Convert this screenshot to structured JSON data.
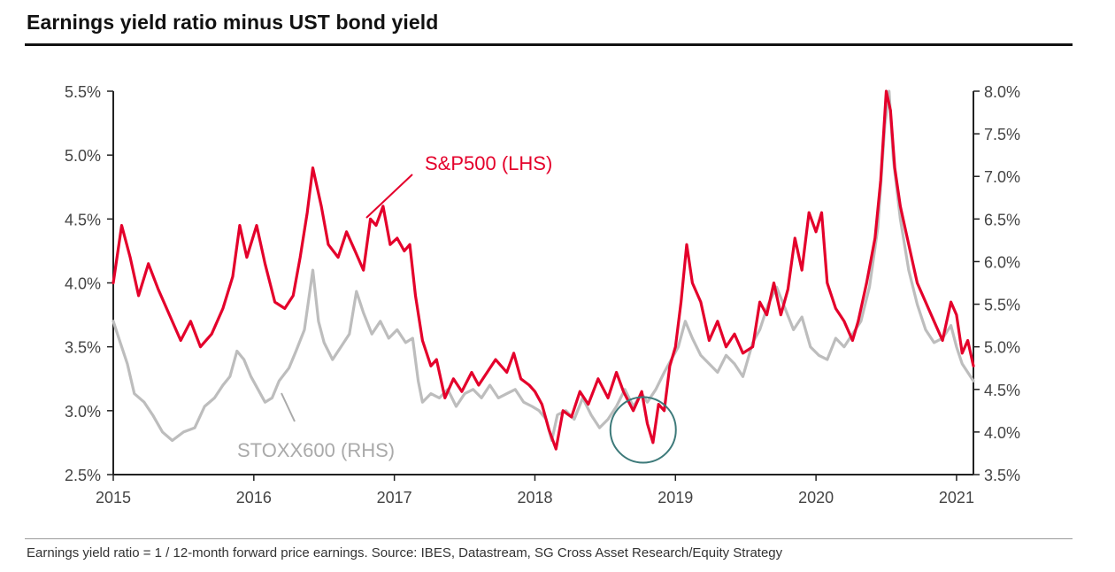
{
  "title": "Earnings yield ratio minus UST bond yield",
  "footnote": "Earnings yield ratio = 1 / 12-month forward price earnings. Source: IBES, Datastream, SG Cross Asset Research/Equity Strategy",
  "colors": {
    "sp500": "#e4002b",
    "stoxx": "#bdbdbd",
    "axis": "#222222",
    "circle": "#3d7a7a"
  },
  "chart_data": {
    "type": "line",
    "title": "Earnings yield ratio minus UST bond yield",
    "x_range": [
      2015.0,
      2021.12
    ],
    "x_ticks": [
      2015,
      2016,
      2017,
      2018,
      2019,
      2020,
      2021
    ],
    "x_tick_labels": [
      "2015",
      "2016",
      "2017",
      "2018",
      "2019",
      "2020",
      "2021"
    ],
    "y_left": {
      "range": [
        2.5,
        5.5
      ],
      "ticks": [
        2.5,
        3.0,
        3.5,
        4.0,
        4.5,
        5.0,
        5.5
      ],
      "tick_labels": [
        "2.5%",
        "3.0%",
        "3.5%",
        "4.0%",
        "4.5%",
        "5.0%",
        "5.5%"
      ]
    },
    "y_right": {
      "range": [
        3.5,
        8.0
      ],
      "ticks": [
        3.5,
        4.0,
        4.5,
        5.0,
        5.5,
        6.0,
        6.5,
        7.0,
        7.5,
        8.0
      ],
      "tick_labels": [
        "3.5%",
        "4.0%",
        "4.5%",
        "5.0%",
        "5.5%",
        "6.0%",
        "6.5%",
        "7.0%",
        "7.5%",
        "8.0%"
      ]
    },
    "series": [
      {
        "name": "S&P500 (LHS)",
        "axis": "left",
        "color": "#e4002b",
        "points": [
          [
            2015.0,
            4.0
          ],
          [
            2015.06,
            4.45
          ],
          [
            2015.12,
            4.2
          ],
          [
            2015.18,
            3.9
          ],
          [
            2015.25,
            4.15
          ],
          [
            2015.32,
            3.95
          ],
          [
            2015.4,
            3.75
          ],
          [
            2015.48,
            3.55
          ],
          [
            2015.55,
            3.7
          ],
          [
            2015.62,
            3.5
          ],
          [
            2015.7,
            3.6
          ],
          [
            2015.78,
            3.8
          ],
          [
            2015.85,
            4.05
          ],
          [
            2015.9,
            4.45
          ],
          [
            2015.95,
            4.2
          ],
          [
            2016.02,
            4.45
          ],
          [
            2016.08,
            4.15
          ],
          [
            2016.15,
            3.85
          ],
          [
            2016.22,
            3.8
          ],
          [
            2016.28,
            3.9
          ],
          [
            2016.33,
            4.2
          ],
          [
            2016.38,
            4.55
          ],
          [
            2016.42,
            4.9
          ],
          [
            2016.48,
            4.6
          ],
          [
            2016.53,
            4.3
          ],
          [
            2016.6,
            4.2
          ],
          [
            2016.66,
            4.4
          ],
          [
            2016.72,
            4.25
          ],
          [
            2016.78,
            4.1
          ],
          [
            2016.83,
            4.5
          ],
          [
            2016.87,
            4.45
          ],
          [
            2016.92,
            4.6
          ],
          [
            2016.97,
            4.3
          ],
          [
            2017.02,
            4.35
          ],
          [
            2017.07,
            4.25
          ],
          [
            2017.11,
            4.3
          ],
          [
            2017.15,
            3.9
          ],
          [
            2017.2,
            3.55
          ],
          [
            2017.26,
            3.35
          ],
          [
            2017.3,
            3.4
          ],
          [
            2017.36,
            3.1
          ],
          [
            2017.42,
            3.25
          ],
          [
            2017.48,
            3.15
          ],
          [
            2017.55,
            3.3
          ],
          [
            2017.6,
            3.2
          ],
          [
            2017.66,
            3.3
          ],
          [
            2017.72,
            3.4
          ],
          [
            2017.8,
            3.3
          ],
          [
            2017.85,
            3.45
          ],
          [
            2017.9,
            3.25
          ],
          [
            2017.96,
            3.2
          ],
          [
            2018.0,
            3.15
          ],
          [
            2018.05,
            3.05
          ],
          [
            2018.1,
            2.85
          ],
          [
            2018.15,
            2.7
          ],
          [
            2018.2,
            3.0
          ],
          [
            2018.26,
            2.95
          ],
          [
            2018.32,
            3.15
          ],
          [
            2018.38,
            3.05
          ],
          [
            2018.45,
            3.25
          ],
          [
            2018.52,
            3.1
          ],
          [
            2018.58,
            3.3
          ],
          [
            2018.63,
            3.15
          ],
          [
            2018.7,
            3.0
          ],
          [
            2018.76,
            3.15
          ],
          [
            2018.8,
            2.9
          ],
          [
            2018.84,
            2.75
          ],
          [
            2018.88,
            3.05
          ],
          [
            2018.92,
            3.0
          ],
          [
            2018.96,
            3.35
          ],
          [
            2019.0,
            3.5
          ],
          [
            2019.04,
            3.85
          ],
          [
            2019.08,
            4.3
          ],
          [
            2019.12,
            4.0
          ],
          [
            2019.18,
            3.85
          ],
          [
            2019.24,
            3.55
          ],
          [
            2019.3,
            3.7
          ],
          [
            2019.36,
            3.5
          ],
          [
            2019.42,
            3.6
          ],
          [
            2019.48,
            3.45
          ],
          [
            2019.55,
            3.5
          ],
          [
            2019.6,
            3.85
          ],
          [
            2019.65,
            3.75
          ],
          [
            2019.7,
            4.0
          ],
          [
            2019.75,
            3.75
          ],
          [
            2019.8,
            3.95
          ],
          [
            2019.85,
            4.35
          ],
          [
            2019.9,
            4.1
          ],
          [
            2019.95,
            4.55
          ],
          [
            2020.0,
            4.4
          ],
          [
            2020.04,
            4.55
          ],
          [
            2020.08,
            4.0
          ],
          [
            2020.14,
            3.8
          ],
          [
            2020.2,
            3.7
          ],
          [
            2020.26,
            3.55
          ],
          [
            2020.3,
            3.7
          ],
          [
            2020.36,
            4.0
          ],
          [
            2020.42,
            4.35
          ],
          [
            2020.46,
            4.8
          ],
          [
            2020.5,
            5.5
          ],
          [
            2020.53,
            5.35
          ],
          [
            2020.56,
            4.9
          ],
          [
            2020.6,
            4.6
          ],
          [
            2020.66,
            4.3
          ],
          [
            2020.72,
            4.0
          ],
          [
            2020.78,
            3.85
          ],
          [
            2020.84,
            3.7
          ],
          [
            2020.9,
            3.55
          ],
          [
            2020.96,
            3.85
          ],
          [
            2021.0,
            3.75
          ],
          [
            2021.04,
            3.45
          ],
          [
            2021.08,
            3.55
          ],
          [
            2021.12,
            3.35
          ]
        ]
      },
      {
        "name": "STOXX600 (RHS)",
        "axis": "right",
        "color": "#bdbdbd",
        "points": [
          [
            2015.0,
            5.3
          ],
          [
            2015.05,
            5.05
          ],
          [
            2015.1,
            4.8
          ],
          [
            2015.15,
            4.45
          ],
          [
            2015.22,
            4.35
          ],
          [
            2015.28,
            4.2
          ],
          [
            2015.35,
            4.0
          ],
          [
            2015.42,
            3.9
          ],
          [
            2015.5,
            4.0
          ],
          [
            2015.58,
            4.05
          ],
          [
            2015.65,
            4.3
          ],
          [
            2015.72,
            4.4
          ],
          [
            2015.78,
            4.55
          ],
          [
            2015.83,
            4.65
          ],
          [
            2015.88,
            4.95
          ],
          [
            2015.93,
            4.85
          ],
          [
            2015.98,
            4.65
          ],
          [
            2016.03,
            4.5
          ],
          [
            2016.08,
            4.35
          ],
          [
            2016.13,
            4.4
          ],
          [
            2016.18,
            4.6
          ],
          [
            2016.25,
            4.75
          ],
          [
            2016.3,
            4.95
          ],
          [
            2016.36,
            5.2
          ],
          [
            2016.42,
            5.9
          ],
          [
            2016.46,
            5.3
          ],
          [
            2016.5,
            5.05
          ],
          [
            2016.56,
            4.85
          ],
          [
            2016.62,
            5.0
          ],
          [
            2016.68,
            5.15
          ],
          [
            2016.73,
            5.65
          ],
          [
            2016.78,
            5.4
          ],
          [
            2016.84,
            5.15
          ],
          [
            2016.9,
            5.3
          ],
          [
            2016.96,
            5.1
          ],
          [
            2017.02,
            5.2
          ],
          [
            2017.08,
            5.05
          ],
          [
            2017.13,
            5.1
          ],
          [
            2017.17,
            4.6
          ],
          [
            2017.2,
            4.35
          ],
          [
            2017.26,
            4.45
          ],
          [
            2017.32,
            4.4
          ],
          [
            2017.38,
            4.5
          ],
          [
            2017.44,
            4.3
          ],
          [
            2017.5,
            4.45
          ],
          [
            2017.56,
            4.5
          ],
          [
            2017.62,
            4.4
          ],
          [
            2017.68,
            4.55
          ],
          [
            2017.74,
            4.4
          ],
          [
            2017.8,
            4.45
          ],
          [
            2017.86,
            4.5
          ],
          [
            2017.92,
            4.35
          ],
          [
            2017.98,
            4.3
          ],
          [
            2018.03,
            4.25
          ],
          [
            2018.08,
            4.15
          ],
          [
            2018.12,
            3.9
          ],
          [
            2018.16,
            4.2
          ],
          [
            2018.22,
            4.25
          ],
          [
            2018.28,
            4.15
          ],
          [
            2018.34,
            4.4
          ],
          [
            2018.4,
            4.2
          ],
          [
            2018.46,
            4.05
          ],
          [
            2018.52,
            4.15
          ],
          [
            2018.58,
            4.3
          ],
          [
            2018.64,
            4.5
          ],
          [
            2018.7,
            4.3
          ],
          [
            2018.76,
            4.45
          ],
          [
            2018.8,
            4.35
          ],
          [
            2018.86,
            4.5
          ],
          [
            2018.92,
            4.7
          ],
          [
            2018.97,
            4.85
          ],
          [
            2019.02,
            5.0
          ],
          [
            2019.07,
            5.3
          ],
          [
            2019.12,
            5.1
          ],
          [
            2019.18,
            4.9
          ],
          [
            2019.24,
            4.8
          ],
          [
            2019.3,
            4.7
          ],
          [
            2019.36,
            4.9
          ],
          [
            2019.42,
            4.8
          ],
          [
            2019.48,
            4.65
          ],
          [
            2019.55,
            5.05
          ],
          [
            2019.6,
            5.2
          ],
          [
            2019.66,
            5.5
          ],
          [
            2019.72,
            5.7
          ],
          [
            2019.78,
            5.45
          ],
          [
            2019.84,
            5.2
          ],
          [
            2019.9,
            5.35
          ],
          [
            2019.96,
            5.0
          ],
          [
            2020.02,
            4.9
          ],
          [
            2020.08,
            4.85
          ],
          [
            2020.14,
            5.1
          ],
          [
            2020.2,
            5.0
          ],
          [
            2020.26,
            5.15
          ],
          [
            2020.32,
            5.3
          ],
          [
            2020.38,
            5.7
          ],
          [
            2020.44,
            6.4
          ],
          [
            2020.49,
            7.6
          ],
          [
            2020.52,
            8.0
          ],
          [
            2020.55,
            7.2
          ],
          [
            2020.6,
            6.5
          ],
          [
            2020.66,
            5.9
          ],
          [
            2020.72,
            5.5
          ],
          [
            2020.78,
            5.2
          ],
          [
            2020.84,
            5.05
          ],
          [
            2020.9,
            5.1
          ],
          [
            2020.96,
            5.25
          ],
          [
            2021.0,
            5.0
          ],
          [
            2021.04,
            4.8
          ],
          [
            2021.08,
            4.7
          ],
          [
            2021.12,
            4.6
          ]
        ]
      }
    ],
    "annotations": [
      {
        "text": "S&P500 (LHS)",
        "color": "#e4002b"
      },
      {
        "text": "STOXX600 (RHS)",
        "color": "#aaaaaa"
      }
    ],
    "highlight": {
      "shape": "circle",
      "center": [
        2018.77,
        2.85
      ]
    }
  }
}
